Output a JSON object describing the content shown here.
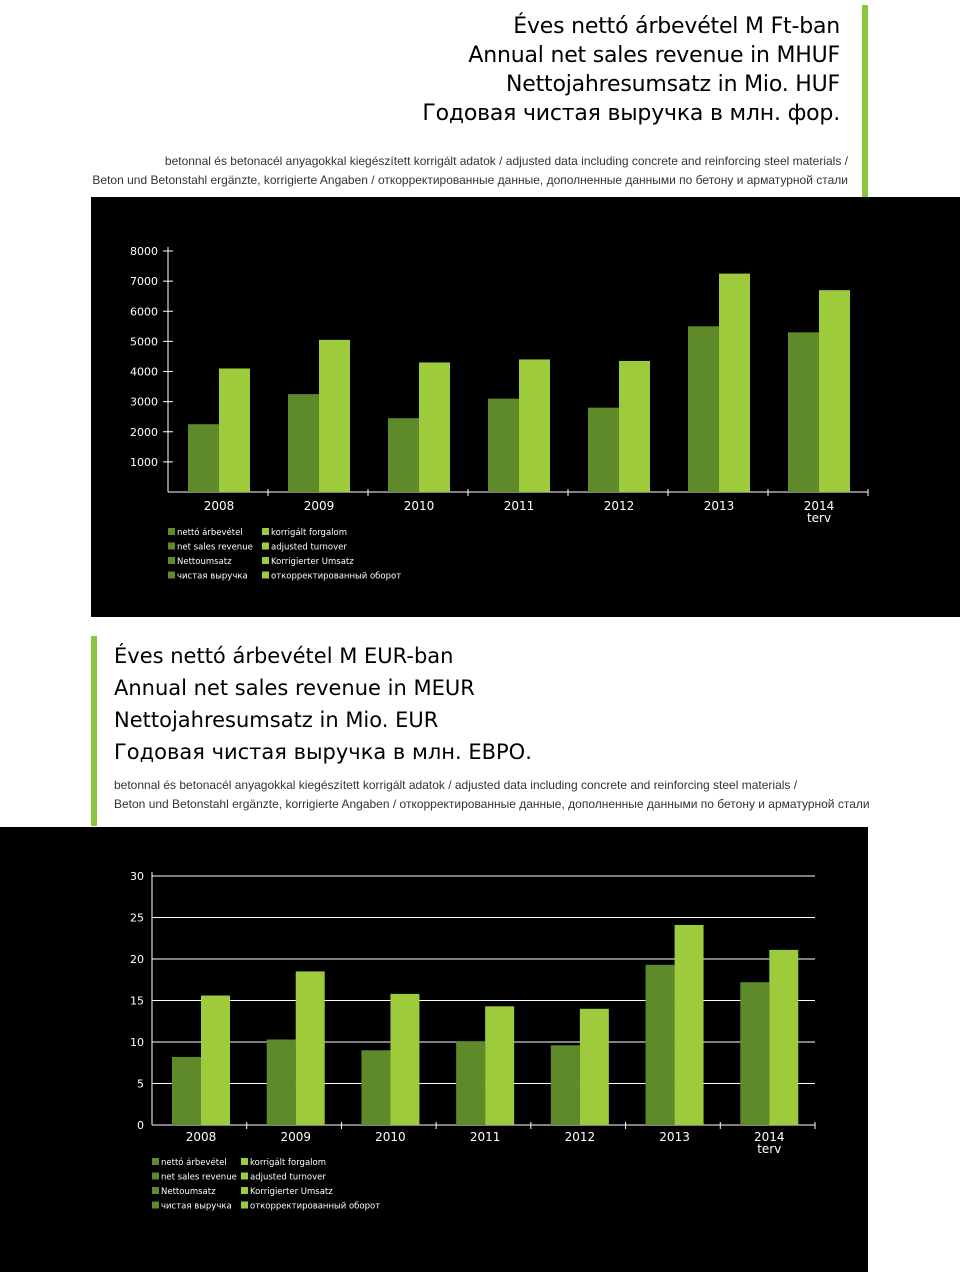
{
  "top": {
    "titles": [
      "Éves nettó árbevétel M Ft-ban",
      "Annual net sales revenue in MHUF",
      "Nettojahresumsatz in Mio. HUF",
      "Годовая чистая выручка в млн. фор."
    ],
    "subtitle": [
      "betonnal és betonacél anyagokkal kiegészített korrigált adatok / adjusted data including concrete and reinforcing steel materials /",
      "Beton und Betonstahl ergänzte, korrigierte Angaben / откорректированные данные, дополненные данными по бетону и арматурной стали"
    ]
  },
  "middle": {
    "titles": [
      "Éves nettó árbevétel M EUR-ban",
      "Annual net sales revenue in MEUR",
      "Nettojahresumsatz in Mio. EUR",
      "Годовая чистая выручка в млн. ЕВРО."
    ],
    "subtitle": [
      "betonnal és betonacél anyagokkal kiegészített korrigált adatok / adjusted data including concrete and reinforcing steel materials /",
      "Beton und Betonstahl ergänzte, korrigierte Angaben / откорректированные данные, дополненные данными по бетону и арматурной стали"
    ]
  },
  "colors": {
    "accent": "#8cc63f",
    "dark_green": "#5e8a2a",
    "light_green": "#9dcb3c",
    "background": "#000000",
    "text_light": "#ffffff"
  },
  "chart_data": [
    {
      "type": "bar",
      "categories": [
        "2008",
        "2009",
        "2010",
        "2011",
        "2012",
        "2013",
        "2014"
      ],
      "category_notes": [
        "",
        "",
        "",
        "",
        "",
        "",
        "terv"
      ],
      "series": [
        {
          "name": "nettó árbevétel / net sales revenue / Nettoumsatz / чистая выручка",
          "values": [
            2250,
            3250,
            2450,
            3100,
            2800,
            5500,
            5300
          ]
        },
        {
          "name": "korrigált forgalom / adjusted turnover / Korrigierter Umsatz / откорректированный оборот",
          "values": [
            4100,
            5050,
            4300,
            4400,
            4350,
            7250,
            6700
          ]
        }
      ],
      "yticks": [
        1000,
        2000,
        3000,
        4000,
        5000,
        6000,
        7000,
        8000
      ],
      "ylim": [
        0,
        8000
      ],
      "grid": false,
      "legend": {
        "position": "bottom-left",
        "series1_lines": [
          "nettó árbevétel",
          "net sales revenue",
          "Nettoumsatz",
          "чистая выручка"
        ],
        "series2_lines": [
          "korrigált forgalom",
          "adjusted turnover",
          "Korrigierter Umsatz",
          "откорректированный оборот"
        ]
      }
    },
    {
      "type": "bar",
      "categories": [
        "2008",
        "2009",
        "2010",
        "2011",
        "2012",
        "2013",
        "2014"
      ],
      "category_notes": [
        "",
        "",
        "",
        "",
        "",
        "",
        "terv"
      ],
      "series": [
        {
          "name": "nettó árbevétel / net sales revenue / Nettoumsatz / чистая выручка",
          "values": [
            8.2,
            10.3,
            9.0,
            10.1,
            9.6,
            19.3,
            17.2
          ]
        },
        {
          "name": "korrigált forgalom / adjusted turnover / Korrigierter Umsatz / откорректированный оборот",
          "values": [
            15.6,
            18.5,
            15.8,
            14.3,
            14.0,
            24.1,
            21.1
          ]
        }
      ],
      "yticks": [
        0,
        5,
        10,
        15,
        20,
        25,
        30
      ],
      "ylim": [
        0,
        30
      ],
      "grid": true,
      "legend": {
        "position": "bottom-left",
        "series1_lines": [
          "nettó árbevétel",
          "net sales revenue",
          "Nettoumsatz",
          "чистая выручка"
        ],
        "series2_lines": [
          "korrigált forgalom",
          "adjusted turnover",
          "Korrigierter Umsatz",
          "откорректированный оборот"
        ]
      }
    }
  ]
}
